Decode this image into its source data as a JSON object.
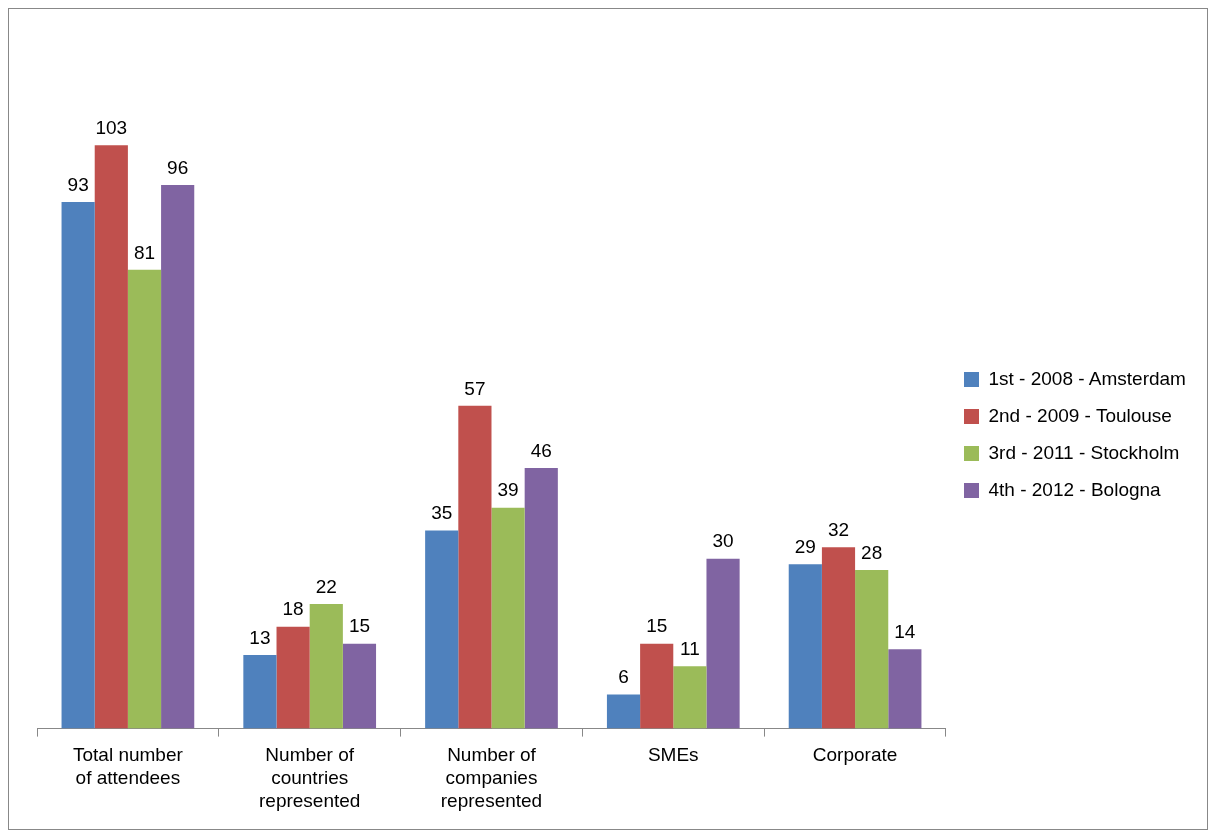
{
  "chart_data": {
    "type": "bar",
    "categories": [
      "Total number of attendees",
      "Number of countries represented",
      "Number of companies represented",
      "SMEs",
      "Corporate"
    ],
    "series": [
      {
        "name": "1st - 2008 - Amsterdam",
        "color": "#4f81bd",
        "values": [
          93,
          13,
          35,
          6,
          29
        ]
      },
      {
        "name": "2nd - 2009 - Toulouse",
        "color": "#c0504d",
        "values": [
          103,
          18,
          57,
          15,
          32
        ]
      },
      {
        "name": "3rd - 2011 - Stockholm",
        "color": "#9bbb59",
        "values": [
          81,
          22,
          39,
          11,
          28
        ]
      },
      {
        "name": "4th - 2012 - Bologna",
        "color": "#8064a2",
        "values": [
          96,
          15,
          46,
          30,
          14
        ]
      }
    ],
    "data_labels": true,
    "legend": "right",
    "grid": false
  }
}
